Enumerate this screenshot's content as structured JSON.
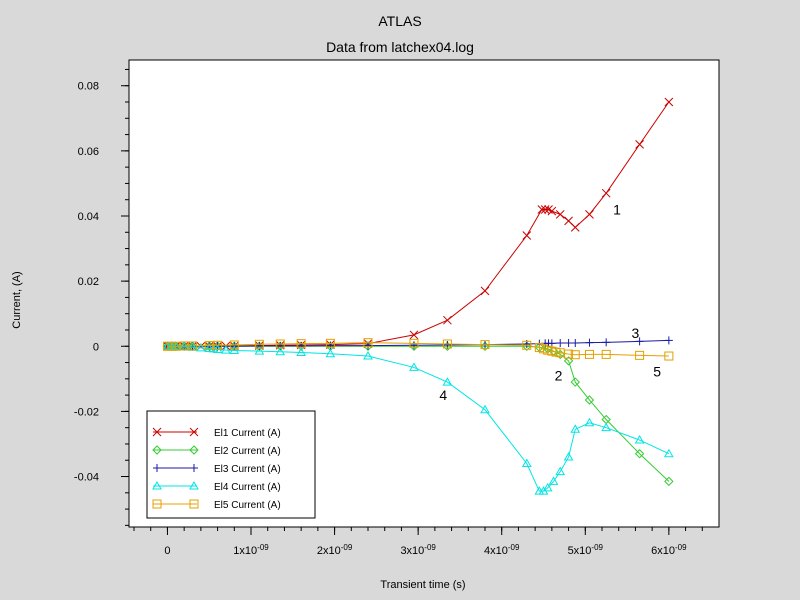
{
  "chart_data": {
    "type": "line",
    "title": "ATLAS",
    "subtitle": "Data from latchex04.log",
    "xlabel": "Transient time (s)",
    "ylabel": "Current, (A)",
    "xlim": [
      -4.6e-10,
      6.6e-09
    ],
    "ylim": [
      -0.0555,
      0.0879
    ],
    "xticks": [
      {
        "v": 0,
        "label": "0",
        "exp": ""
      },
      {
        "v": 1e-09,
        "label": "1x10",
        "exp": "-09"
      },
      {
        "v": 2e-09,
        "label": "2x10",
        "exp": "-09"
      },
      {
        "v": 3e-09,
        "label": "3x10",
        "exp": "-09"
      },
      {
        "v": 4e-09,
        "label": "4x10",
        "exp": "-09"
      },
      {
        "v": 5e-09,
        "label": "5x10",
        "exp": "-09"
      },
      {
        "v": 6e-09,
        "label": "6x10",
        "exp": "-09"
      }
    ],
    "yticks": [
      {
        "v": 0.08,
        "label": "0.08"
      },
      {
        "v": 0.06,
        "label": "0.06"
      },
      {
        "v": 0.04,
        "label": "0.04"
      },
      {
        "v": 0.02,
        "label": "0.02"
      },
      {
        "v": 0,
        "label": "0"
      },
      {
        "v": -0.02,
        "label": "-0.02"
      },
      {
        "v": -0.04,
        "label": "-0.04"
      }
    ],
    "legend_position": "bottom-left",
    "grid": false,
    "series": [
      {
        "name": "El1 Current (A)",
        "color": "#cc0000",
        "marker": "x",
        "x": [
          0,
          2e-11,
          5e-11,
          1e-10,
          1.5e-10,
          2e-10,
          2.5e-10,
          3e-10,
          4e-10,
          5e-10,
          5.5e-10,
          6e-10,
          7e-10,
          8e-10,
          1.1e-09,
          1.35e-09,
          1.6e-09,
          1.95e-09,
          2.4e-09,
          2.95e-09,
          3.35e-09,
          3.8e-09,
          4.3e-09,
          4.48e-09,
          4.52e-09,
          4.56e-09,
          4.6e-09,
          4.7e-09,
          4.8e-09,
          4.88e-09,
          5.05e-09,
          5.25e-09,
          5.65e-09,
          6e-09
        ],
        "y": [
          0,
          0,
          0,
          0,
          0,
          0,
          0,
          0,
          0,
          0,
          0,
          0,
          0.0001,
          0.0001,
          0.0002,
          0.0003,
          0.0004,
          0.0005,
          0.0008,
          0.0035,
          0.008,
          0.017,
          0.034,
          0.042,
          0.042,
          0.042,
          0.0415,
          0.0405,
          0.0385,
          0.0365,
          0.0405,
          0.047,
          0.062,
          0.075
        ]
      },
      {
        "name": "El2 Current (A)",
        "color": "#33cc33",
        "marker": "diamond",
        "x": [
          0,
          5e-11,
          1e-10,
          2e-10,
          3e-10,
          5e-10,
          6e-10,
          8e-10,
          1.1e-09,
          1.35e-09,
          1.6e-09,
          1.95e-09,
          2.4e-09,
          2.95e-09,
          3.35e-09,
          3.8e-09,
          4.3e-09,
          4.45e-09,
          4.55e-09,
          4.62e-09,
          4.7e-09,
          4.8e-09,
          4.88e-09,
          5.05e-09,
          5.25e-09,
          5.65e-09,
          6e-09
        ],
        "y": [
          0,
          0,
          0,
          0,
          0,
          0,
          0,
          0,
          0,
          0,
          0,
          0,
          0,
          0,
          0,
          0,
          0,
          -0.0003,
          -0.0008,
          -0.0015,
          -0.0025,
          -0.0045,
          -0.011,
          -0.0165,
          -0.0225,
          -0.033,
          -0.0415
        ]
      },
      {
        "name": "El3 Current (A)",
        "color": "#1a1aa6",
        "marker": "plus",
        "x": [
          0,
          5e-11,
          1e-10,
          2e-10,
          3e-10,
          5e-10,
          6e-10,
          8e-10,
          1.1e-09,
          1.35e-09,
          1.6e-09,
          1.95e-09,
          2.4e-09,
          2.95e-09,
          3.35e-09,
          3.8e-09,
          4.3e-09,
          4.45e-09,
          4.52e-09,
          4.56e-09,
          4.6e-09,
          4.7e-09,
          4.8e-09,
          4.88e-09,
          5.05e-09,
          5.25e-09,
          5.65e-09,
          6e-09
        ],
        "y": [
          0,
          0,
          0,
          0,
          0,
          0,
          0,
          0,
          0.0001,
          0.0001,
          0.0001,
          0.0002,
          0.0002,
          0.0003,
          0.0004,
          0.0005,
          0.0007,
          0.0008,
          0.0009,
          0.0009,
          0.0009,
          0.001,
          0.001,
          0.001,
          0.0011,
          0.0012,
          0.0015,
          0.0018
        ]
      },
      {
        "name": "El4 Current (A)",
        "color": "#00e5e5",
        "marker": "triangle",
        "x": [
          0,
          5e-11,
          1e-10,
          2e-10,
          3e-10,
          4e-10,
          5e-10,
          5.5e-10,
          6e-10,
          7e-10,
          8e-10,
          1.1e-09,
          1.35e-09,
          1.6e-09,
          1.95e-09,
          2.4e-09,
          2.95e-09,
          3.35e-09,
          3.8e-09,
          4.3e-09,
          4.45e-09,
          4.5e-09,
          4.55e-09,
          4.62e-09,
          4.7e-09,
          4.8e-09,
          4.88e-09,
          5.05e-09,
          5.25e-09,
          5.65e-09,
          6e-09
        ],
        "y": [
          0,
          0,
          -0.0001,
          -0.0002,
          -0.0003,
          -0.0005,
          -0.0007,
          -0.0008,
          -0.001,
          -0.0012,
          -0.0013,
          -0.0015,
          -0.0017,
          -0.0019,
          -0.0023,
          -0.003,
          -0.0065,
          -0.011,
          -0.0195,
          -0.036,
          -0.0445,
          -0.0445,
          -0.0435,
          -0.0415,
          -0.0385,
          -0.034,
          -0.0255,
          -0.0235,
          -0.025,
          -0.0288,
          -0.033
        ]
      },
      {
        "name": "El5 Current (A)",
        "color": "#e5a000",
        "marker": "square",
        "x": [
          0,
          5e-11,
          1e-10,
          2e-10,
          3e-10,
          5e-10,
          6e-10,
          8e-10,
          1.1e-09,
          1.35e-09,
          1.6e-09,
          1.95e-09,
          2.4e-09,
          2.95e-09,
          3.35e-09,
          3.8e-09,
          4.3e-09,
          4.45e-09,
          4.5e-09,
          4.55e-09,
          4.6e-09,
          4.65e-09,
          4.7e-09,
          4.8e-09,
          4.88e-09,
          5.05e-09,
          5.25e-09,
          5.65e-09,
          6e-09
        ],
        "y": [
          0,
          0,
          0,
          0.0001,
          0.0001,
          0.0002,
          0.0003,
          0.0004,
          0.0006,
          0.0007,
          0.0008,
          0.0009,
          0.0011,
          0.0009,
          0.0007,
          0.0005,
          0.0003,
          -0.0004,
          -0.0008,
          -0.0012,
          -0.0015,
          -0.0018,
          -0.002,
          -0.0024,
          -0.0026,
          -0.0025,
          -0.0025,
          -0.0028,
          -0.003
        ]
      }
    ],
    "annotations": [
      {
        "text": "1",
        "x": 5.38e-09,
        "y": 0.0405
      },
      {
        "text": "2",
        "x": 4.68e-09,
        "y": -0.0105
      },
      {
        "text": "3",
        "x": 5.6e-09,
        "y": 0.0025
      },
      {
        "text": "4",
        "x": 3.3e-09,
        "y": -0.0165
      },
      {
        "text": "5",
        "x": 5.86e-09,
        "y": -0.0093
      }
    ]
  }
}
